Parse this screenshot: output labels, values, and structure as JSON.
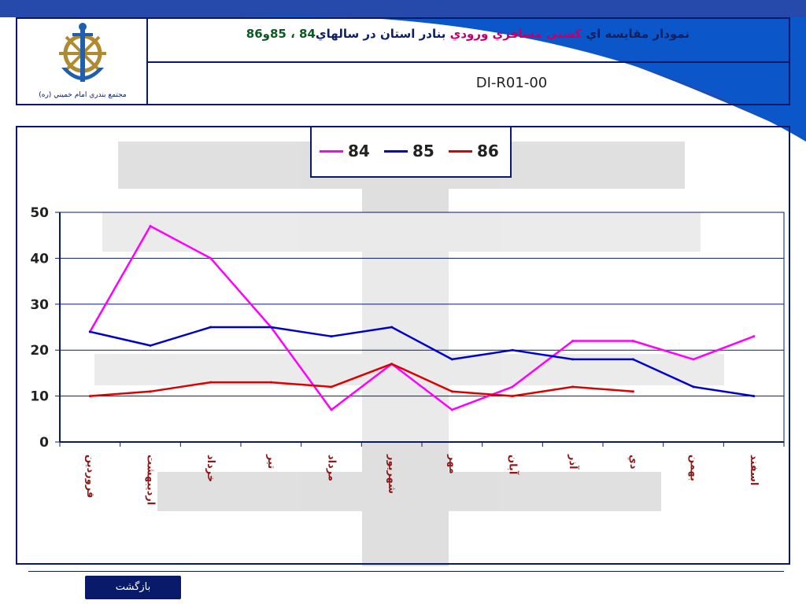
{
  "header": {
    "org_name": "مجتمع بندري امام خميني (ره)",
    "title_part1": "نمودار مقايسه اي ",
    "title_accent": "كشتي مسافري ورودي",
    "title_part2": " بنادر استان در سالهاي",
    "title_years": "84 ، 85و86",
    "doc_code": "DI-R01-00"
  },
  "colors": {
    "frame": "#0a1a6b",
    "series_84": "#ff00ff",
    "series_85": "#0000cc",
    "series_86": "#dd0000",
    "gridline": "#0a1a6b"
  },
  "legend": {
    "items": [
      {
        "label": "84",
        "color": "#ff00ff"
      },
      {
        "label": "85",
        "color": "#0000cc"
      },
      {
        "label": "86",
        "color": "#dd0000"
      }
    ]
  },
  "footer": {
    "back_label": "بازگشت"
  },
  "chart_data": {
    "type": "line",
    "categories": [
      "فروردين",
      "ارديبهشت",
      "خرداد",
      "تير",
      "مرداد",
      "شهريور",
      "مهر",
      "آبان",
      "آذر",
      "دي",
      "بهمن",
      "اسفند"
    ],
    "series": [
      {
        "name": "84",
        "color": "#ff00ff",
        "values": [
          24,
          47,
          40,
          25,
          7,
          17,
          7,
          12,
          22,
          22,
          18,
          23
        ]
      },
      {
        "name": "85",
        "color": "#0000cc",
        "values": [
          24,
          21,
          25,
          25,
          23,
          25,
          18,
          20,
          18,
          18,
          12,
          10
        ]
      },
      {
        "name": "86",
        "color": "#dd0000",
        "values": [
          10,
          11,
          13,
          13,
          12,
          17,
          11,
          10,
          12,
          11,
          null,
          null
        ]
      }
    ],
    "yticks": [
      0,
      10,
      20,
      30,
      40,
      50
    ],
    "ylim": [
      0,
      50
    ],
    "grid": true,
    "legend_position": "top-center",
    "title": "",
    "xlabel": "",
    "ylabel": ""
  }
}
